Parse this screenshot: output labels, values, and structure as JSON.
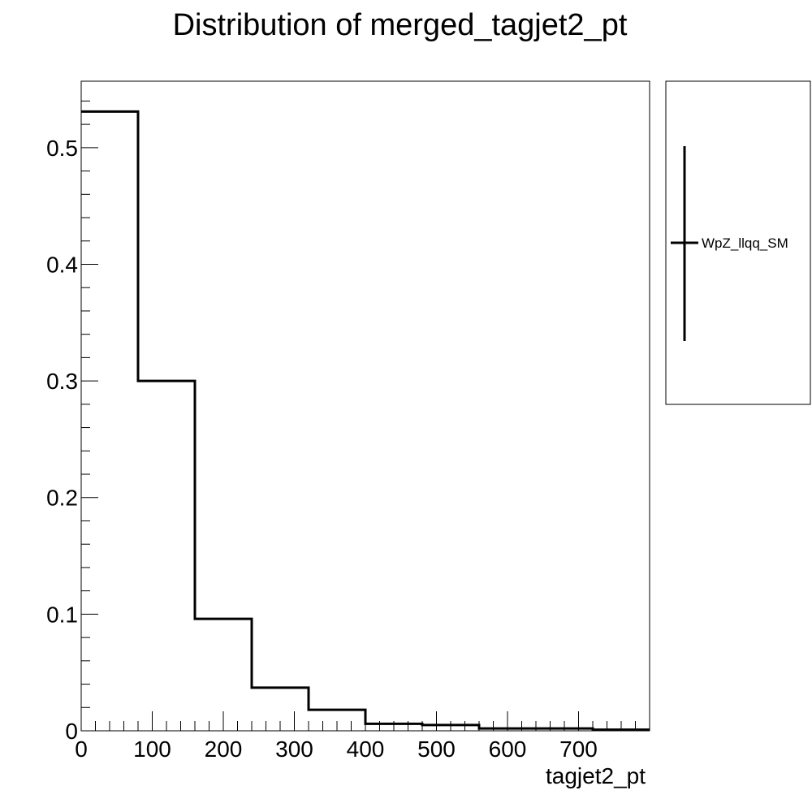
{
  "chart_data": {
    "type": "histogram",
    "title": "Distribution of merged_tagjet2_pt",
    "xlabel": "tagjet2_pt",
    "ylabel": "",
    "xlim": [
      0,
      800
    ],
    "ylim": [
      0,
      0.557
    ],
    "x_ticks": [
      0,
      100,
      200,
      300,
      400,
      500,
      600,
      700
    ],
    "x_tick_labels": [
      "0",
      "100",
      "200",
      "300",
      "400",
      "500",
      "600",
      "700"
    ],
    "y_ticks": [
      0,
      0.1,
      0.2,
      0.3,
      0.4,
      0.5
    ],
    "y_tick_labels": [
      "0",
      "0.1",
      "0.2",
      "0.3",
      "0.4",
      "0.5"
    ],
    "bin_edges": [
      0,
      80,
      160,
      240,
      320,
      400,
      480,
      560,
      640,
      720,
      800
    ],
    "series": [
      {
        "name": "WpZ_llqq_SM",
        "color": "#000000",
        "values": [
          0.531,
          0.3,
          0.096,
          0.037,
          0.018,
          0.006,
          0.005,
          0.002,
          0.002,
          0.001
        ]
      }
    ],
    "legend": {
      "entries": [
        "WpZ_llqq_SM"
      ],
      "position": "right"
    }
  }
}
